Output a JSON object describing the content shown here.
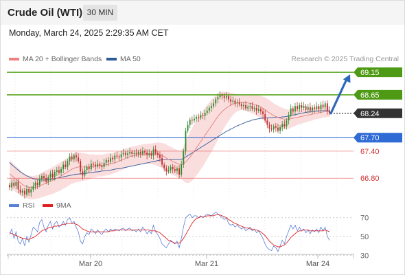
{
  "header": {
    "title": "Crude Oil (WTI)",
    "interval": "30 MIN"
  },
  "datetime": "Monday, March 24, 2025 2:29:35 AM CET",
  "credit": "Research © 2025 Trading Central",
  "legend_main": [
    {
      "label": "MA 20 + Bollinger Bands",
      "color": "#f08080"
    },
    {
      "label": "MA 50",
      "color": "#2f5a9a"
    }
  ],
  "legend_rsi": [
    {
      "label": "RSI",
      "color": "#5a7fd6"
    },
    {
      "label": "9MA",
      "color": "#e02020"
    }
  ],
  "colors": {
    "up": "#2f8a2f",
    "down": "#c03030",
    "resistance": "#5aa51e",
    "pivot": "#2f6bd6",
    "support": "#e04040",
    "current": "#333333",
    "arrow": "#2f68b8"
  },
  "chart_data": [
    {
      "type": "candlestick",
      "x_ticks": [
        "Mar 20",
        "Mar 21",
        "Mar 24"
      ],
      "ylim": [
        66.3,
        69.35
      ],
      "levels": [
        {
          "label": "69.15",
          "value": 69.15,
          "kind": "resistance"
        },
        {
          "label": "68.65",
          "value": 68.65,
          "kind": "resistance"
        },
        {
          "label": "68.24",
          "value": 68.24,
          "kind": "current"
        },
        {
          "label": "67.70",
          "value": 67.7,
          "kind": "pivot"
        },
        {
          "label": "67.40",
          "value": 67.4,
          "kind": "support"
        },
        {
          "label": "66.80",
          "value": 66.8,
          "kind": "support"
        }
      ],
      "series": [
        {
          "name": "Price",
          "close": [
            66.6,
            66.7,
            66.63,
            66.72,
            66.55,
            66.48,
            66.52,
            66.44,
            66.56,
            66.48,
            66.55,
            66.62,
            66.7,
            66.65,
            66.78,
            66.85,
            66.8,
            66.72,
            66.82,
            66.9,
            66.82,
            66.94,
            66.98,
            66.92,
            67.0,
            67.1,
            67.05,
            67.18,
            67.28,
            67.22,
            67.31,
            67.26,
            67.18,
            66.95,
            66.86,
            66.98,
            67.05,
            67.0,
            67.12,
            67.1,
            67.06,
            67.12,
            67.08,
            67.05,
            67.14,
            67.2,
            67.16,
            67.25,
            67.22,
            67.3,
            67.28,
            67.26,
            67.33,
            67.36,
            67.32,
            67.35,
            67.38,
            67.34,
            67.36,
            67.33,
            67.38,
            67.34,
            67.4,
            67.37,
            67.31,
            67.35,
            67.3,
            67.44,
            67.36,
            67.32,
            67.25,
            67.1,
            67.02,
            66.95,
            66.98,
            67.05,
            67.0,
            66.96,
            67.02,
            66.88,
            67.1,
            67.4,
            67.85,
            67.98,
            68.1,
            68.08,
            68.12,
            68.16,
            68.14,
            68.2,
            68.18,
            68.25,
            68.3,
            68.36,
            68.4,
            68.46,
            68.55,
            68.6,
            68.64,
            68.62,
            68.58,
            68.62,
            68.55,
            68.5,
            68.52,
            68.46,
            68.48,
            68.44,
            68.4,
            68.42,
            68.35,
            68.38,
            68.4,
            68.34,
            68.36,
            68.3,
            68.33,
            68.28,
            68.22,
            68.08,
            67.98,
            67.9,
            67.88,
            67.95,
            67.92,
            67.85,
            67.93,
            68.0,
            67.95,
            68.08,
            68.2,
            68.35,
            68.28,
            68.4,
            68.33,
            68.42,
            68.36,
            68.4,
            68.32,
            68.38,
            68.3,
            68.37,
            68.34,
            68.4,
            68.33,
            68.43,
            68.38,
            68.46,
            68.3,
            68.25
          ],
          "ma20": [
            66.9,
            66.86,
            66.82,
            66.78,
            66.74,
            66.7,
            66.66,
            66.63,
            66.61,
            66.6,
            66.59,
            66.59,
            66.6,
            66.61,
            66.63,
            66.65,
            66.67,
            66.69,
            66.71,
            66.73,
            66.75,
            66.77,
            66.8,
            66.82,
            66.85,
            66.88,
            66.91,
            66.94,
            66.97,
            67.0,
            67.02,
            67.04,
            67.05,
            67.05,
            67.05,
            67.05,
            67.05,
            67.05,
            67.06,
            67.07,
            67.07,
            67.08,
            67.08,
            67.08,
            67.09,
            67.1,
            67.11,
            67.12,
            67.13,
            67.14,
            67.16,
            67.18,
            67.2,
            67.22,
            67.24,
            67.26,
            67.28,
            67.29,
            67.3,
            67.31,
            67.32,
            67.33,
            67.33,
            67.34,
            67.34,
            67.34,
            67.34,
            67.34,
            67.34,
            67.33,
            67.32,
            67.3,
            67.28,
            67.25,
            67.22,
            67.2,
            67.17,
            67.15,
            67.13,
            67.11,
            67.1,
            67.12,
            67.16,
            67.21,
            67.27,
            67.33,
            67.4,
            67.47,
            67.54,
            67.61,
            67.68,
            67.75,
            67.82,
            67.89,
            67.96,
            68.03,
            68.1,
            68.17,
            68.23,
            68.28,
            68.32,
            68.36,
            68.39,
            68.42,
            68.44,
            68.46,
            68.47,
            68.48,
            68.48,
            68.48,
            68.48,
            68.47,
            68.46,
            68.45,
            68.44,
            68.42,
            68.4,
            68.38,
            68.35,
            68.32,
            68.28,
            68.25,
            68.22,
            68.19,
            68.17,
            68.15,
            68.13,
            68.12,
            68.11,
            68.11,
            68.11,
            68.12,
            68.13,
            68.14,
            68.15,
            68.16,
            68.17,
            68.18,
            68.19,
            68.2,
            68.21,
            68.22,
            68.23,
            68.24,
            68.25,
            68.26,
            68.27,
            68.28,
            68.28,
            68.28
          ],
          "bb_width": [
            0.3,
            0.3,
            0.29,
            0.29,
            0.28,
            0.28,
            0.27,
            0.27,
            0.26,
            0.26,
            0.26,
            0.26,
            0.26,
            0.26,
            0.27,
            0.27,
            0.28,
            0.28,
            0.29,
            0.29,
            0.3,
            0.3,
            0.3,
            0.31,
            0.31,
            0.31,
            0.32,
            0.32,
            0.32,
            0.32,
            0.33,
            0.33,
            0.33,
            0.32,
            0.31,
            0.3,
            0.29,
            0.28,
            0.27,
            0.26,
            0.25,
            0.24,
            0.24,
            0.24,
            0.24,
            0.24,
            0.24,
            0.24,
            0.23,
            0.23,
            0.23,
            0.22,
            0.22,
            0.22,
            0.22,
            0.21,
            0.21,
            0.21,
            0.21,
            0.21,
            0.21,
            0.21,
            0.22,
            0.22,
            0.22,
            0.23,
            0.23,
            0.24,
            0.25,
            0.26,
            0.27,
            0.28,
            0.29,
            0.3,
            0.3,
            0.3,
            0.3,
            0.3,
            0.3,
            0.3,
            0.32,
            0.38,
            0.46,
            0.52,
            0.56,
            0.58,
            0.6,
            0.61,
            0.62,
            0.62,
            0.62,
            0.61,
            0.6,
            0.59,
            0.58,
            0.56,
            0.54,
            0.52,
            0.48,
            0.44,
            0.4,
            0.36,
            0.32,
            0.28,
            0.24,
            0.21,
            0.19,
            0.18,
            0.17,
            0.17,
            0.18,
            0.19,
            0.2,
            0.21,
            0.22,
            0.23,
            0.24,
            0.25,
            0.26,
            0.27,
            0.28,
            0.28,
            0.28,
            0.27,
            0.26,
            0.26,
            0.25,
            0.24,
            0.23,
            0.22,
            0.21,
            0.2,
            0.19,
            0.18,
            0.17,
            0.16,
            0.16,
            0.15,
            0.15,
            0.14,
            0.14,
            0.14,
            0.13,
            0.13,
            0.13,
            0.13,
            0.13,
            0.13,
            0.12,
            0.12
          ],
          "ma50": [
            67.15,
            67.1,
            67.06,
            67.02,
            66.98,
            66.94,
            66.91,
            66.88,
            66.85,
            66.83,
            66.81,
            66.79,
            66.78,
            66.77,
            66.76,
            66.76,
            66.76,
            66.76,
            66.77,
            66.77,
            66.78,
            66.79,
            66.8,
            66.81,
            66.82,
            66.83,
            66.84,
            66.85,
            66.86,
            66.87,
            66.88,
            66.89,
            66.89,
            66.9,
            66.9,
            66.91,
            66.91,
            66.92,
            66.92,
            66.93,
            66.94,
            66.94,
            66.95,
            66.96,
            66.96,
            66.97,
            66.98,
            66.98,
            66.99,
            67.0,
            67.01,
            67.01,
            67.02,
            67.03,
            67.04,
            67.05,
            67.06,
            67.07,
            67.08,
            67.09,
            67.1,
            67.11,
            67.12,
            67.13,
            67.14,
            67.15,
            67.16,
            67.17,
            67.18,
            67.19,
            67.2,
            67.21,
            67.21,
            67.22,
            67.22,
            67.22,
            67.22,
            67.22,
            67.22,
            67.22,
            67.22,
            67.24,
            67.27,
            67.3,
            67.33,
            67.36,
            67.39,
            67.42,
            67.45,
            67.48,
            67.51,
            67.54,
            67.57,
            67.6,
            67.63,
            67.66,
            67.69,
            67.72,
            67.75,
            67.78,
            67.81,
            67.84,
            67.86,
            67.89,
            67.91,
            67.94,
            67.96,
            67.98,
            68.0,
            68.02,
            68.04,
            68.06,
            68.07,
            68.09,
            68.1,
            68.11,
            68.12,
            68.13,
            68.13,
            68.14,
            68.14,
            68.14,
            68.14,
            68.15,
            68.15,
            68.15,
            68.15,
            68.16,
            68.16,
            68.17,
            68.18,
            68.19,
            68.2,
            68.21,
            68.22,
            68.23,
            68.24,
            68.25,
            68.26,
            68.27,
            68.27,
            68.28,
            68.28,
            68.29,
            68.29,
            68.3,
            68.3,
            68.3,
            68.3,
            68.3
          ]
        }
      ],
      "projection": {
        "from_value": 68.24,
        "to_value": 69.15
      }
    },
    {
      "type": "line",
      "ylim": [
        20,
        80
      ],
      "y_ticks": [
        70,
        50,
        30
      ],
      "series": [
        {
          "name": "RSI",
          "values": [
            52,
            58,
            48,
            55,
            45,
            42,
            48,
            40,
            50,
            44,
            52,
            60,
            58,
            55,
            65,
            68,
            60,
            55,
            62,
            66,
            58,
            64,
            66,
            60,
            62,
            66,
            62,
            68,
            70,
            64,
            66,
            60,
            55,
            45,
            42,
            50,
            54,
            52,
            58,
            56,
            53,
            57,
            54,
            52,
            56,
            58,
            55,
            58,
            56,
            58,
            57,
            56,
            58,
            59,
            56,
            58,
            59,
            56,
            57,
            55,
            58,
            55,
            60,
            57,
            53,
            56,
            53,
            62,
            55,
            52,
            48,
            42,
            40,
            38,
            42,
            46,
            44,
            42,
            45,
            38,
            48,
            60,
            70,
            72,
            74,
            70,
            72,
            72,
            70,
            72,
            70,
            72,
            74,
            73,
            72,
            74,
            76,
            74,
            72,
            70,
            68,
            70,
            64,
            62,
            63,
            60,
            62,
            60,
            58,
            60,
            56,
            58,
            60,
            56,
            58,
            54,
            56,
            52,
            48,
            42,
            38,
            36,
            35,
            40,
            38,
            34,
            40,
            46,
            42,
            50,
            56,
            62,
            58,
            62,
            56,
            60,
            56,
            58,
            54,
            57,
            53,
            57,
            55,
            58,
            54,
            60,
            56,
            60,
            50,
            46
          ]
        },
        {
          "name": "9MA",
          "values": [
            54,
            53,
            52,
            51,
            50,
            49,
            48,
            48,
            47,
            47,
            48,
            49,
            50,
            52,
            54,
            56,
            57,
            58,
            59,
            60,
            60,
            61,
            61,
            62,
            62,
            63,
            63,
            64,
            64,
            64,
            64,
            63,
            62,
            60,
            58,
            57,
            56,
            55,
            55,
            55,
            55,
            55,
            55,
            55,
            55,
            55,
            55,
            56,
            56,
            56,
            57,
            57,
            57,
            57,
            57,
            57,
            57,
            57,
            57,
            57,
            57,
            57,
            57,
            57,
            57,
            57,
            56,
            56,
            56,
            55,
            54,
            52,
            50,
            48,
            46,
            45,
            44,
            43,
            43,
            43,
            45,
            48,
            52,
            56,
            60,
            64,
            67,
            69,
            70,
            71,
            71,
            71,
            72,
            72,
            72,
            72,
            73,
            73,
            73,
            72,
            71,
            70,
            68,
            67,
            65,
            64,
            63,
            62,
            61,
            60,
            59,
            59,
            58,
            58,
            57,
            57,
            56,
            55,
            53,
            51,
            48,
            45,
            43,
            41,
            40,
            39,
            39,
            40,
            41,
            43,
            46,
            49,
            51,
            53,
            55,
            56,
            56,
            57,
            57,
            57,
            56,
            56,
            56,
            56,
            56,
            56,
            56,
            57,
            56,
            55
          ]
        }
      ]
    }
  ]
}
